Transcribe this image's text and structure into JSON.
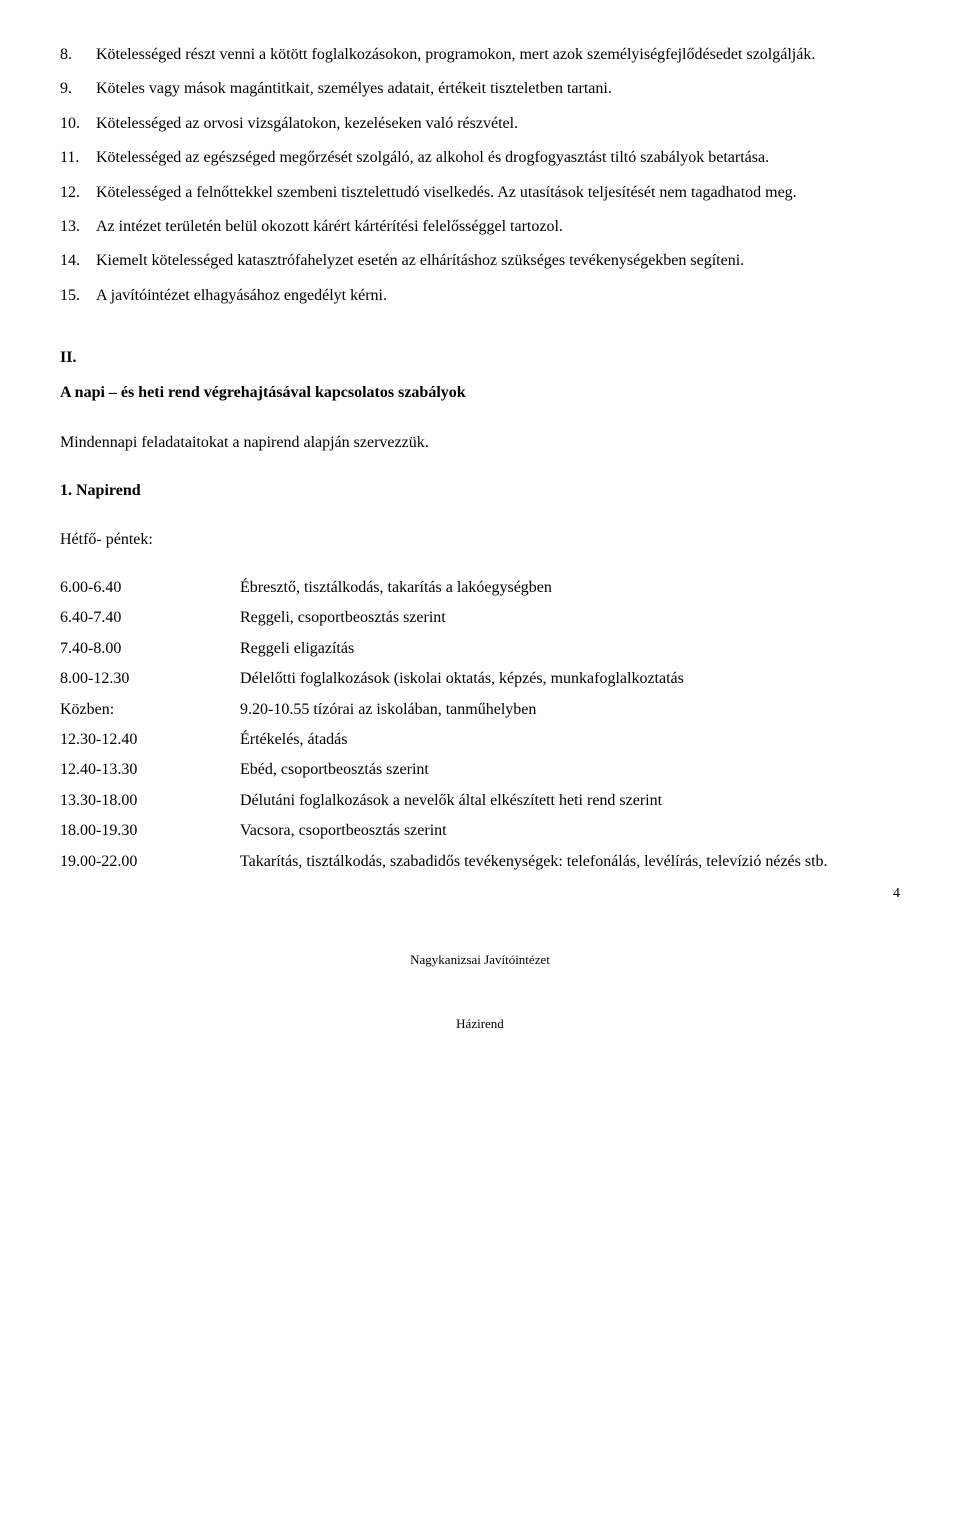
{
  "items": [
    {
      "num": "8.",
      "text": "Kötelességed részt venni a kötött foglalkozásokon, programokon, mert azok személyiségfejlődésedet szolgálják.",
      "justifyFirst": true
    },
    {
      "num": "9.",
      "text": "Köteles vagy mások magántitkait, személyes adatait, értékeit tiszteletben tartani."
    },
    {
      "num": "10.",
      "text": "Kötelességed az orvosi vizsgálatokon, kezeléseken való részvétel."
    },
    {
      "num": "11.",
      "text": "Kötelességed az egészséged megőrzését szolgáló, az alkohol és drogfogyasztást tiltó szabályok betartása."
    },
    {
      "num": "12.",
      "text": "Kötelességed a felnőttekkel szembeni tisztelettudó viselkedés. Az utasítások teljesítését nem tagadhatod meg.",
      "justifyFirst": true
    },
    {
      "num": "13.",
      "text": "Az intézet területén belül okozott kárért kártérítési felelősséggel tartozol."
    },
    {
      "num": "14.",
      "text": "Kiemelt kötelességed katasztrófahelyzet esetén az elhárításhoz szükséges tevékenységekben segíteni.",
      "justifyFirst": true
    },
    {
      "num": "15.",
      "text": "A javítóintézet elhagyásához engedélyt kérni."
    }
  ],
  "sectionNum": "II.",
  "sectionTitle": "A napi – és heti rend végrehajtásával kapcsolatos szabályok",
  "intro": "Mindennapi feladataitokat a napirend alapján szervezzük.",
  "subTitle": "1. Napirend",
  "dayRange": "Hétfő- péntek:",
  "schedule": [
    {
      "time": "6.00-6.40",
      "desc": "Ébresztő, tisztálkodás, takarítás a lakóegységben"
    },
    {
      "time": "6.40-7.40",
      "desc": "Reggeli, csoportbeosztás szerint"
    },
    {
      "time": "7.40-8.00",
      "desc": "Reggeli eligazítás"
    },
    {
      "time": "8.00-12.30",
      "desc": "Délelőtti foglalkozások (iskolai oktatás, képzés, munkafoglalkoztatás"
    },
    {
      "time": "Közben:",
      "desc": "9.20-10.55 tízórai az iskolában, tanműhelyben"
    },
    {
      "time": "12.30-12.40",
      "desc": "Értékelés, átadás"
    },
    {
      "time": "12.40-13.30",
      "desc": "Ebéd, csoportbeosztás szerint"
    },
    {
      "time": "13.30-18.00",
      "desc": "Délutáni foglalkozások a nevelők által elkészített heti rend szerint"
    },
    {
      "time": "18.00-19.30",
      "desc": "Vacsora, csoportbeosztás szerint"
    },
    {
      "time": "19.00-22.00",
      "desc": "Takarítás, tisztálkodás, szabadidős tevékenységek: telefonálás, levélírás, televízió nézés stb."
    }
  ],
  "footer1": "Nagykanizsai Javítóintézet",
  "footer2": "Házirend",
  "pageNumber": "4"
}
